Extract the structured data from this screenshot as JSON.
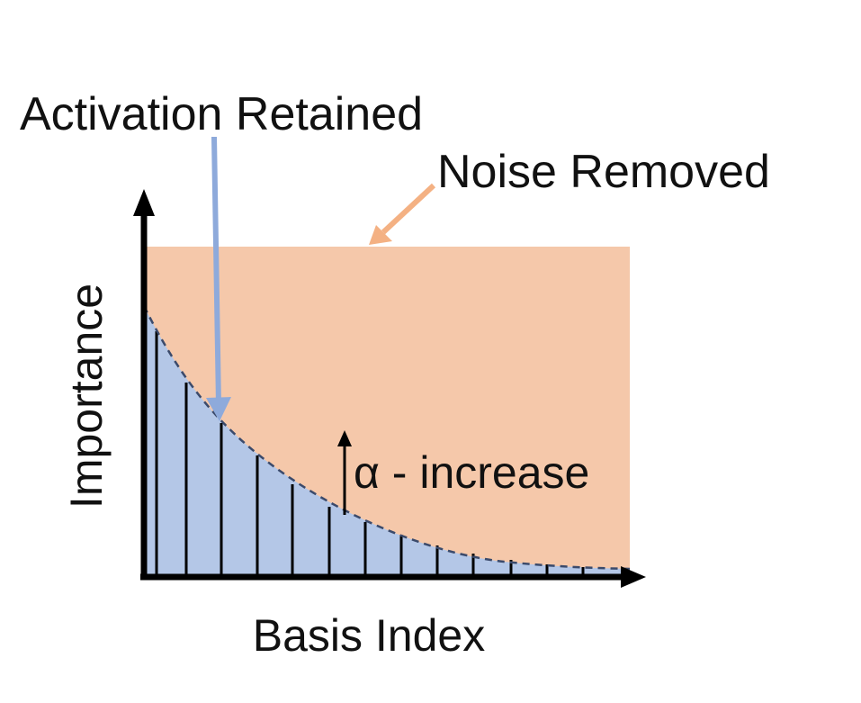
{
  "annotations": {
    "retained": "Activation Retained",
    "removed": "Noise Removed",
    "alpha": "α - increase"
  },
  "axes": {
    "x_label": "Basis Index",
    "y_label": "Importance"
  },
  "colors": {
    "noise_region": "#f5c8aa",
    "retained_region": "#b4c7e7",
    "retained_arrow": "#8eaadb",
    "removed_arrow": "#f4b183",
    "axis": "#000000",
    "curve": "#3b4a6b"
  }
}
